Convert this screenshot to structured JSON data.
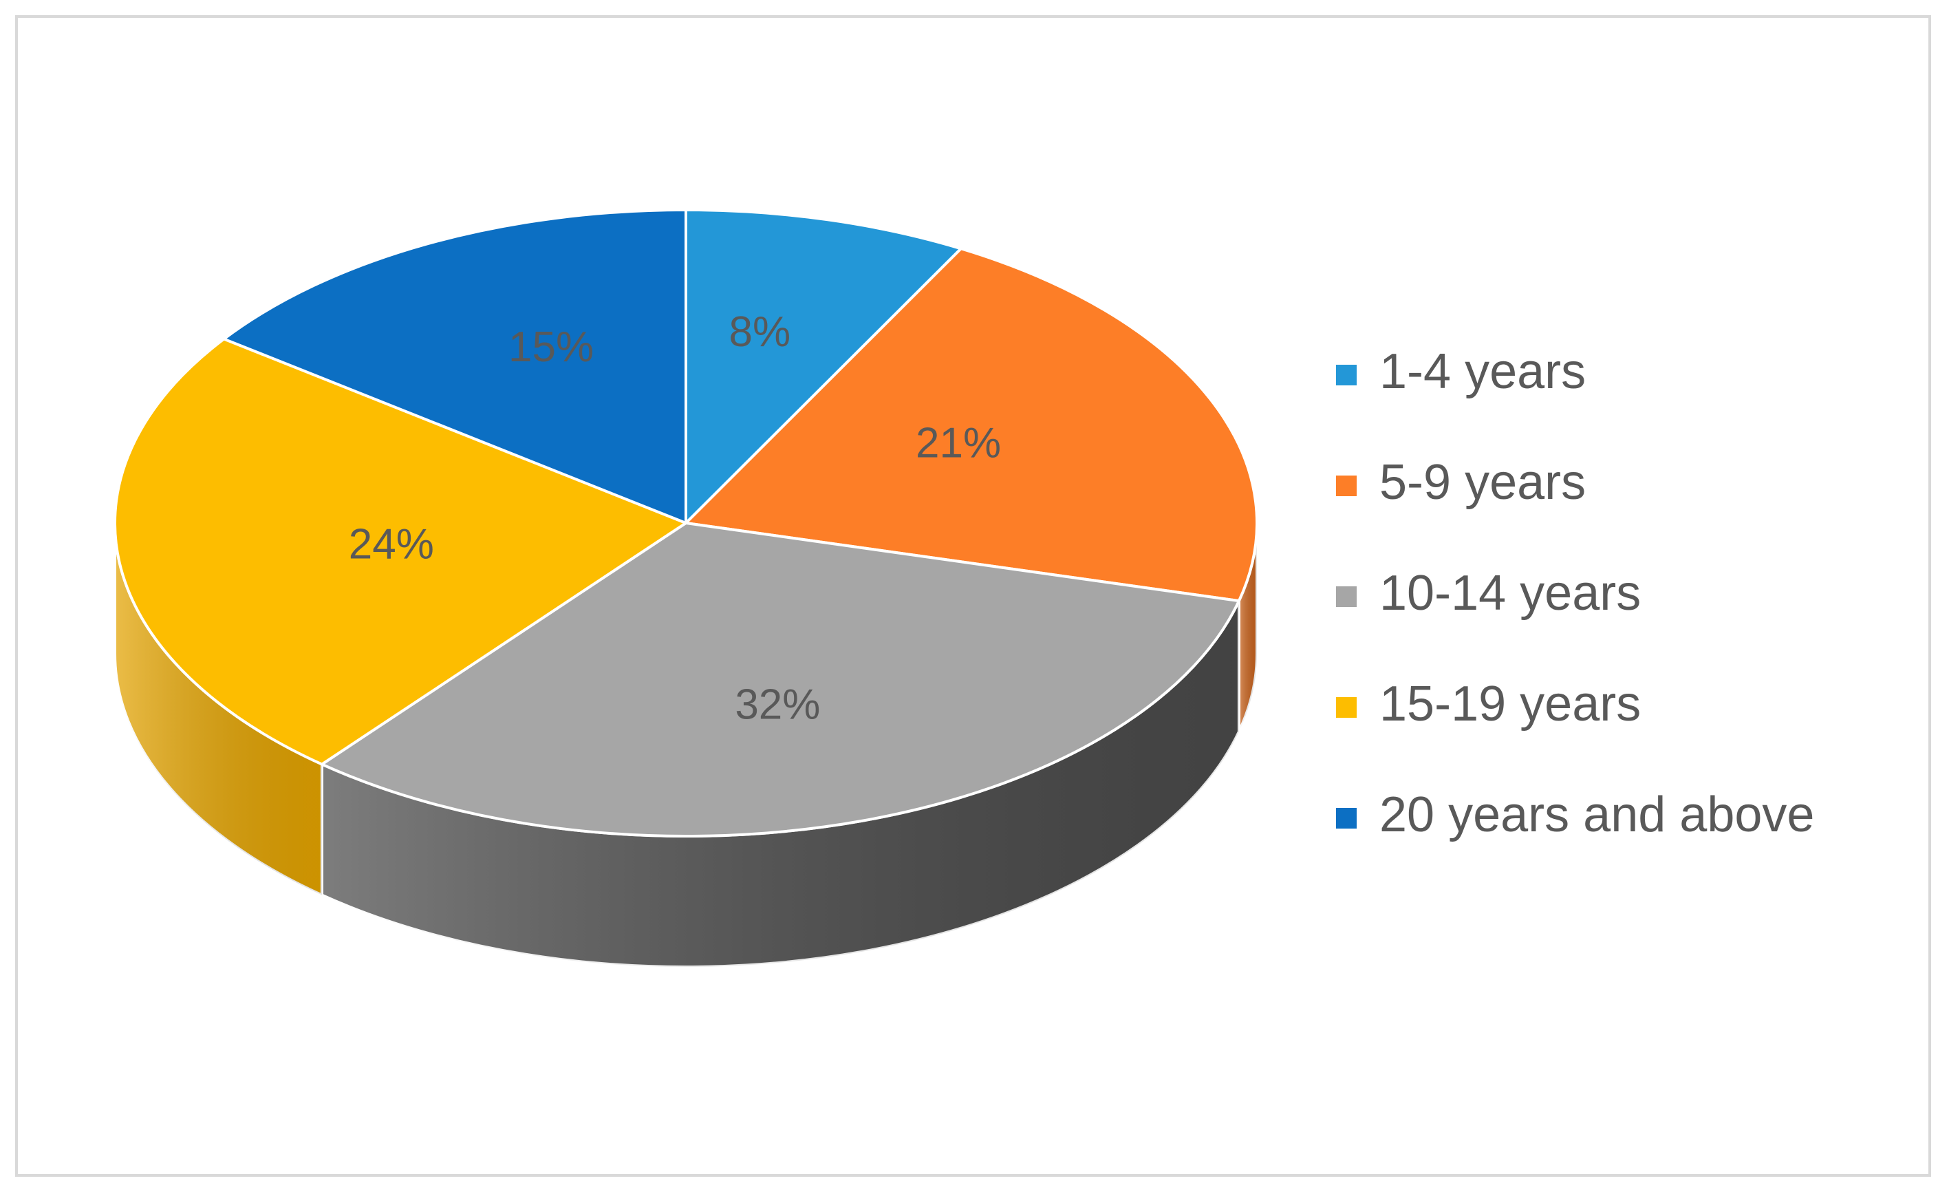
{
  "chart_data": {
    "type": "pie",
    "style": "3d",
    "legend_position": "right",
    "data_labels": "percent",
    "categories": [
      "1-4 years",
      "5-9 years",
      "10-14 years",
      "15-19 years",
      "20 years and above"
    ],
    "values": [
      8,
      21,
      32,
      24,
      15
    ],
    "colors": [
      "#2397d7",
      "#fd7e27",
      "#a6a6a6",
      "#fdbd00",
      "#0c6fc3"
    ],
    "side_colors": [
      "#1c78ab",
      "#c9631d",
      "#4a4a4a",
      "#e3a300",
      "#0a5799"
    ],
    "labels": [
      "8%",
      "21%",
      "32%",
      "24%",
      "15%"
    ]
  }
}
